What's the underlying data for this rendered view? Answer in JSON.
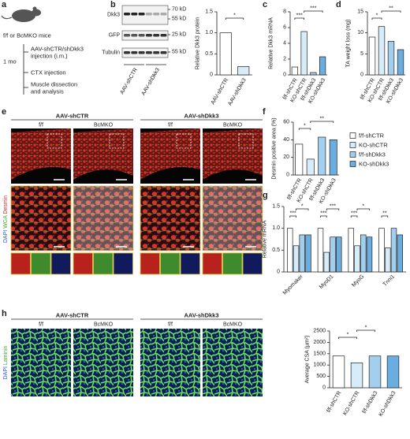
{
  "panel_labels": [
    "a",
    "b",
    "c",
    "d",
    "e",
    "f",
    "g",
    "h"
  ],
  "schematic": {
    "mice": "f/f or BcMKO mice",
    "time": "1 mo",
    "steps": [
      [
        "AAV-shCTR/shDkk3",
        "injection (i.m.)"
      ],
      [
        "CTX injection"
      ],
      [
        "Muscle dissection",
        "and analysis"
      ]
    ]
  },
  "blot": {
    "rows": [
      {
        "name": "Dkk3",
        "sizes": [
          "70 kD",
          "55 kD"
        ]
      },
      {
        "name": "GFP",
        "sizes": [
          "25 kD"
        ]
      },
      {
        "name": "Tubulin",
        "sizes": [
          "55 kD"
        ]
      }
    ],
    "groups": [
      "AAV-shCTR",
      "AAV-shDkk3"
    ]
  },
  "panel_e": {
    "groups": [
      "AAV-shCTR",
      "AAV-shDkk3"
    ],
    "columns": [
      "f/f",
      "BcMKO",
      "f/f",
      "BcMKO"
    ],
    "stain": [
      "DAPI",
      "WGA",
      "Desmin"
    ]
  },
  "panel_h": {
    "groups": [
      "AAV-shCTR",
      "AAV-shDkk3"
    ],
    "columns": [
      "f/f",
      "BcMKO",
      "f/f",
      "BcMKO"
    ],
    "stain": [
      "DAPI",
      "Laminin"
    ]
  },
  "chart_data": [
    {
      "type": "bar",
      "ylabel": "Relative Dkk3 protein",
      "categories": [
        "AAV-shCTR",
        "AAV-shDkk3"
      ],
      "values": [
        1.0,
        0.2
      ],
      "colors": [
        "#ffffff",
        "#d6ecf8"
      ],
      "ylim": [
        0,
        1.5
      ],
      "yticks": [
        0,
        0.5,
        {
          "value": 1.0,
          "label": "1.0"
        },
        1.5
      ],
      "annotations": [
        "*"
      ]
    },
    {
      "type": "bar",
      "ylabel": "Relative Dkk3 mRNA",
      "categories": [
        "f/f-shCTR",
        "KO-shCTR",
        "f/f-shDkk3",
        "KO-shDkk3"
      ],
      "values": [
        1.0,
        5.5,
        0.3,
        2.3
      ],
      "colors": [
        "#ffffff",
        "#d6ecf8",
        "#a3cfee",
        "#6aade0"
      ],
      "ylim": [
        0,
        8
      ],
      "yticks": [
        0,
        2,
        4,
        6,
        8
      ],
      "annotations": [
        "***",
        "***"
      ]
    },
    {
      "type": "bar",
      "ylabel": "TA weight loss (mg)",
      "categories": [
        "f/f-shCTR",
        "KO-shCTR",
        "f/f-shDkk3",
        "KO-shDkk3"
      ],
      "values": [
        9,
        11.5,
        8,
        6
      ],
      "colors": [
        "#ffffff",
        "#d6ecf8",
        "#a3cfee",
        "#6aade0"
      ],
      "ylim": [
        0,
        15
      ],
      "yticks": [
        0,
        5,
        10,
        15
      ],
      "annotations": [
        "*",
        "**"
      ]
    },
    {
      "type": "bar",
      "ylabel": "Desmin positive area (%)",
      "categories": [
        "f/f-shCTR",
        "KO-shCTR",
        "f/f-shDkk3",
        "KO-shDkk3"
      ],
      "values": [
        35,
        18,
        43,
        40
      ],
      "colors": [
        "#ffffff",
        "#d6ecf8",
        "#a3cfee",
        "#6aade0"
      ],
      "ylim": [
        0,
        60
      ],
      "yticks": [
        0,
        20,
        40,
        60
      ],
      "annotations": [
        "*",
        "**"
      ]
    },
    {
      "type": "grouped_bar",
      "ylabel": "Relative mRNA",
      "categories": [
        "Myomaker",
        "MyoD1",
        "MyoG",
        "Tnni1"
      ],
      "series": [
        {
          "name": "f/f-shCTR",
          "color": "#ffffff",
          "values": [
            1.0,
            1.0,
            1.0,
            1.0
          ]
        },
        {
          "name": "KO-shCTR",
          "color": "#d6ecf8",
          "values": [
            0.6,
            0.45,
            0.6,
            0.55
          ]
        },
        {
          "name": "f/f-shDkk3",
          "color": "#a3cfee",
          "values": [
            0.85,
            0.8,
            0.85,
            1.0
          ]
        },
        {
          "name": "KO-shDkk3",
          "color": "#6aade0",
          "values": [
            0.85,
            0.8,
            0.8,
            0.85
          ]
        }
      ],
      "ylim": [
        0,
        1.5
      ],
      "yticks": [
        0,
        0.5,
        {
          "value": 1.0,
          "label": "1.0"
        },
        1.5
      ],
      "annotations": [
        "***",
        "*",
        "***",
        "***",
        "***",
        "*",
        "**"
      ]
    },
    {
      "type": "bar",
      "ylabel": "Average CSA (µm²)",
      "categories": [
        "f/f-shCTR",
        "KO-shCTR",
        "f/f-shDkk3",
        "KO-shDkk3"
      ],
      "values": [
        1400,
        1100,
        1400,
        1400
      ],
      "colors": [
        "#ffffff",
        "#d6ecf8",
        "#a3cfee",
        "#6aade0"
      ],
      "ylim": [
        0,
        2500
      ],
      "yticks": [
        0,
        500,
        1000,
        1500,
        2000,
        2500
      ],
      "annotations": [
        "*",
        "*"
      ]
    }
  ]
}
